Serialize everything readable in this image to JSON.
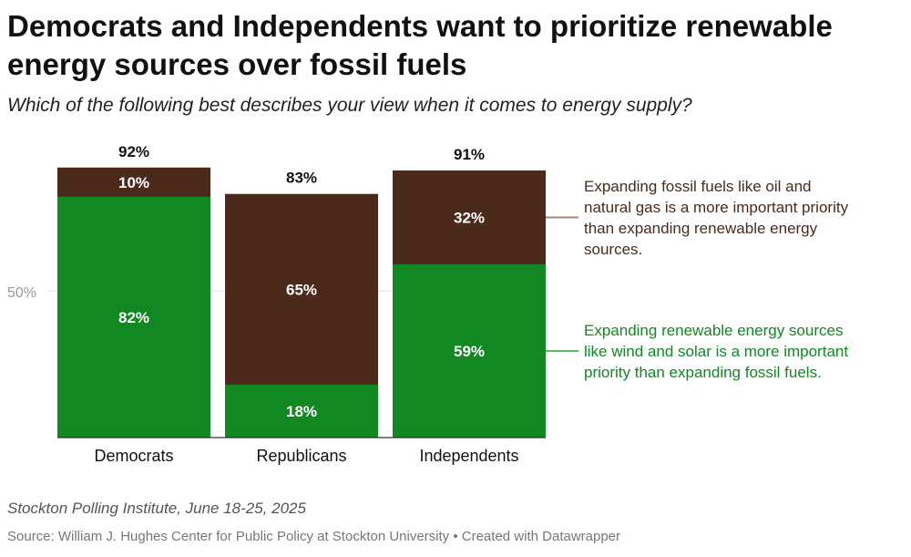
{
  "title": "Democrats and Independents want to prioritize renewable energy sources over fossil fuels",
  "subtitle": "Which of the following best describes your view when it comes to energy supply?",
  "footnote": "Stockton Polling Institute, June 18-25, 2025",
  "source": "Source: William J. Hughes Center for Public Policy at Stockton University • Created with Datawrapper",
  "colors": {
    "renewable": "#118822",
    "fossil": "#4b2a1c",
    "axis": "#999999",
    "grid": "#dddddd"
  },
  "chart_data": {
    "type": "bar",
    "stacked": true,
    "categories": [
      "Democrats",
      "Republicans",
      "Independents"
    ],
    "totals": [
      "92%",
      "83%",
      "91%"
    ],
    "ylim": [
      0,
      100
    ],
    "y_ticks": [
      {
        "value": 50,
        "label": "50%"
      }
    ],
    "series": [
      {
        "key": "renewable",
        "name": "Expanding renewable energy sources like wind and solar is a more important priority than expanding fossil fuels.",
        "values": [
          82,
          18,
          59
        ],
        "labels": [
          "82%",
          "18%",
          "59%"
        ]
      },
      {
        "key": "fossil",
        "name": "Expanding fossil fuels like oil and natural gas is a more important priority than expanding renewable energy sources.",
        "values": [
          10,
          65,
          32
        ],
        "labels": [
          "10%",
          "65%",
          "32%"
        ]
      }
    ],
    "legend_lines": {
      "fossil": [
        "Expanding fossil fuels like oil and",
        "natural gas is a more important priority",
        "than expanding renewable energy",
        "sources."
      ],
      "renewable": [
        "Expanding renewable energy sources",
        "like wind and solar is a more important",
        "priority than expanding fossil fuels."
      ]
    },
    "legend_position": "right"
  }
}
